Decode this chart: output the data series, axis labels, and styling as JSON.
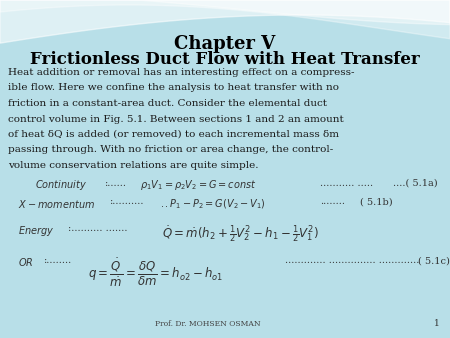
{
  "title1": "Chapter V",
  "title2": "Frictionless Duct Flow with Heat Transfer",
  "body_lines": [
    "Heat addition or removal has an interesting effect on a compress-",
    "ible flow. Here we confine the analysis to heat transfer with no",
    "friction in a constant-area duct. Consider the elemental duct",
    "control volume in Fig. 5.1. Between sections 1 and 2 an amount",
    "of heat δQ is added (or removed) to each incremental mass δm",
    "passing through. With no friction or area change, the control-",
    "volume conservation relations are quite simple."
  ],
  "footer": "Prof. Dr. MOHSEN OSMAN",
  "page_num": "1",
  "bg_color": "#b8dfe8",
  "wave_color1": "#d8eff5",
  "wave_color2": "#e8f6fa",
  "text_color": "#1a1a1a",
  "title_color": "#000000",
  "eq_text_color": "#333333"
}
